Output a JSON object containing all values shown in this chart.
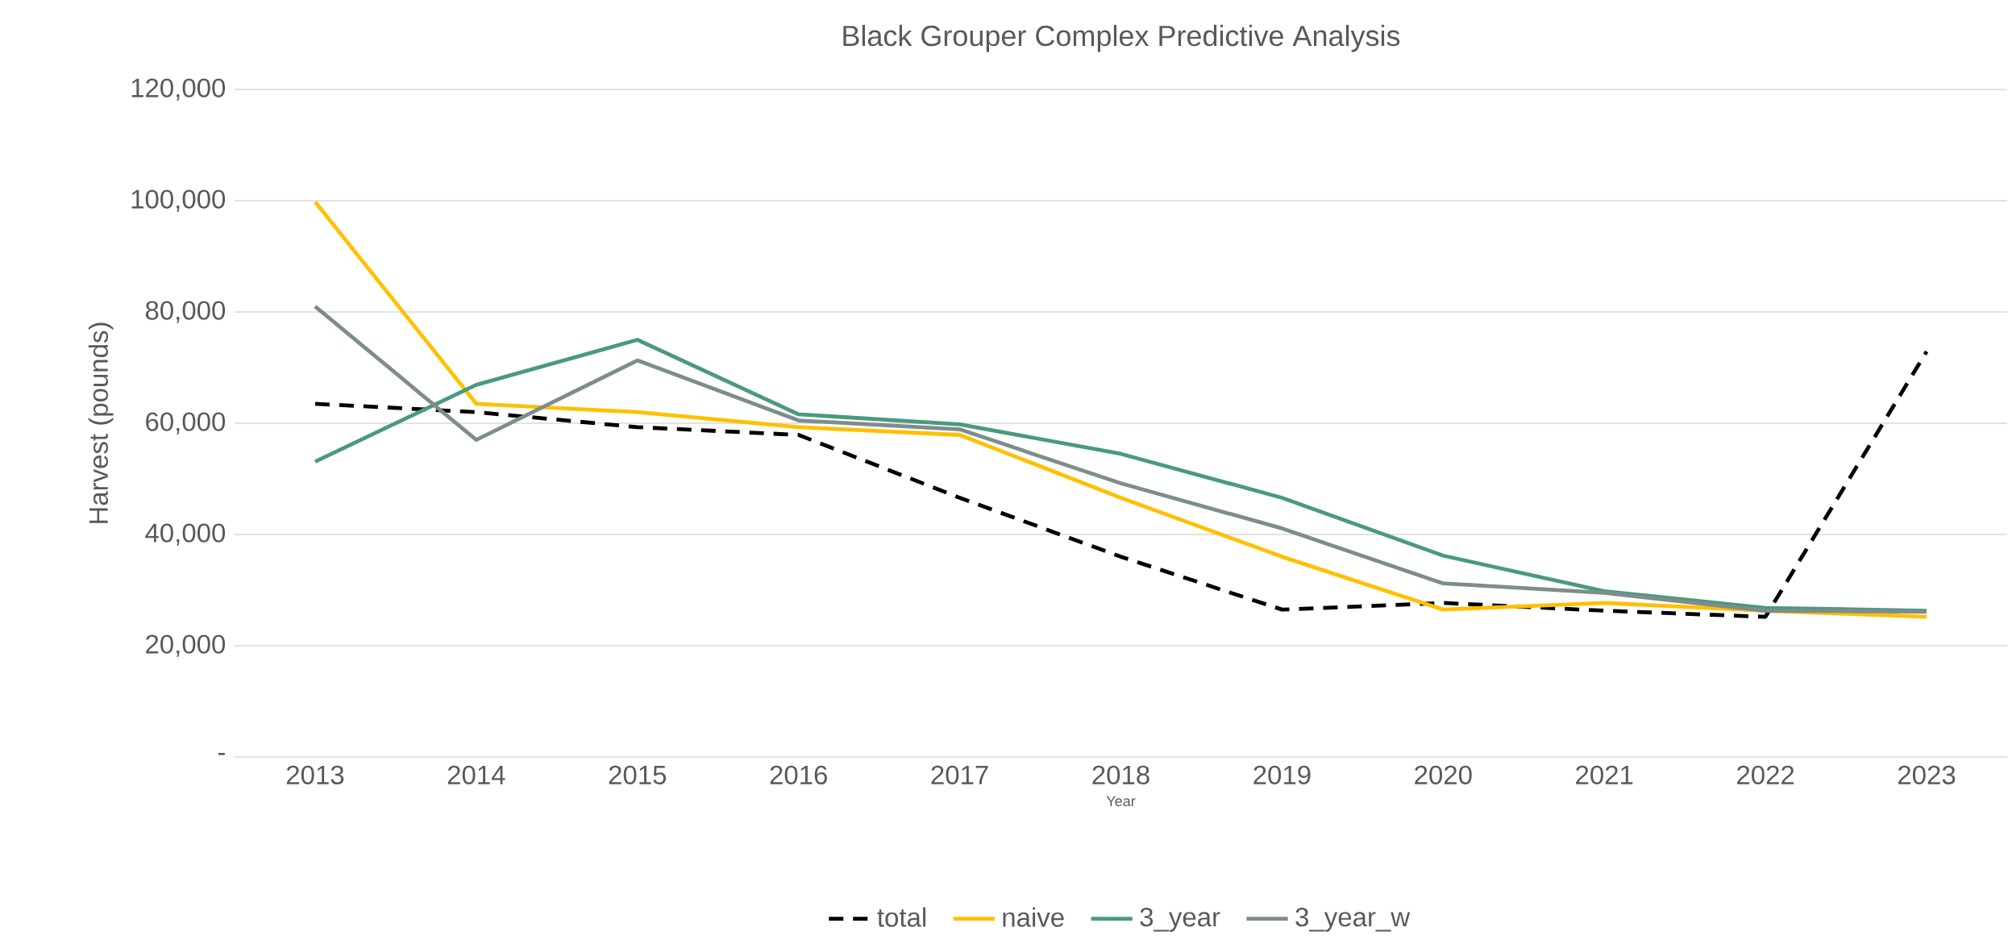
{
  "chart_data": {
    "type": "line",
    "title": "Black Grouper Complex Predictive Analysis",
    "xlabel": "Year",
    "ylabel": "Harvest (pounds)",
    "categories": [
      "2013",
      "2014",
      "2015",
      "2016",
      "2017",
      "2018",
      "2019",
      "2020",
      "2021",
      "2022",
      "2023"
    ],
    "series": [
      {
        "name": "total",
        "color": "#000000",
        "line_style": "dashed",
        "values": [
          63500,
          62000,
          59300,
          57900,
          46600,
          36000,
          26500,
          27700,
          26300,
          25200,
          72900
        ]
      },
      {
        "name": "naive",
        "color": "#ffc000",
        "line_style": "solid",
        "values": [
          99800,
          63500,
          62000,
          59300,
          57900,
          46600,
          36000,
          26500,
          27700,
          26300,
          25200
        ]
      },
      {
        "name": "3_year",
        "color": "#4a9a7c",
        "line_style": "solid",
        "values": [
          53100,
          66900,
          75000,
          61600,
          59800,
          54500,
          46600,
          36200,
          29800,
          26800,
          26300
        ]
      },
      {
        "name": "3_year_w",
        "color": "#7f8c8d",
        "line_style": "solid",
        "values": [
          81000,
          57000,
          71300,
          60500,
          58900,
          49200,
          41100,
          31200,
          29500,
          26300,
          26100
        ]
      }
    ],
    "ylim": [
      0,
      120000
    ],
    "yticks": [
      {
        "value": 0,
        "label": "-"
      },
      {
        "value": 20000,
        "label": "20,000"
      },
      {
        "value": 40000,
        "label": "40,000"
      },
      {
        "value": 60000,
        "label": "60,000"
      },
      {
        "value": 80000,
        "label": "80,000"
      },
      {
        "value": 100000,
        "label": "100,000"
      },
      {
        "value": 120000,
        "label": "120,000"
      }
    ],
    "grid": "y",
    "legend": "bottom",
    "marker": "none"
  }
}
